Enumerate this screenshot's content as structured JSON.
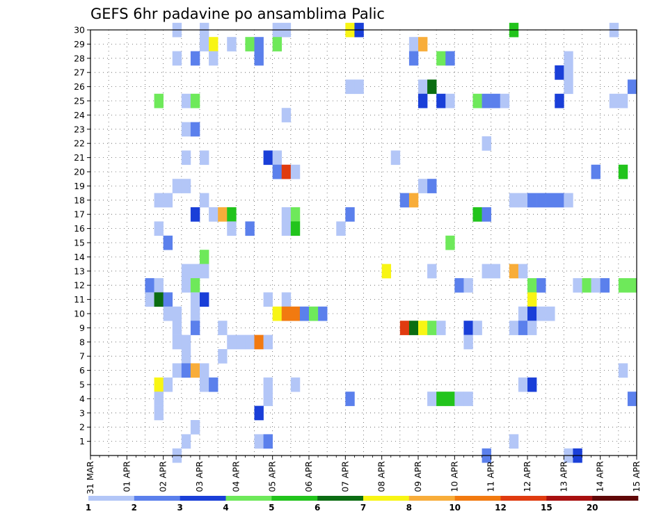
{
  "chart_data": {
    "type": "heatmap",
    "title": "GEFS 6hr padavine po ansamblima Palic",
    "x_ticks": [
      "31 MAR",
      "01 APR",
      "02 APR",
      "03 APR",
      "04 APR",
      "05 APR",
      "06 APR",
      "07 APR",
      "08 APR",
      "09 APR",
      "10 APR",
      "11 APR",
      "12 APR",
      "13 APR",
      "14 APR",
      "15 APR"
    ],
    "y_ticks": [
      "1",
      "2",
      "3",
      "4",
      "5",
      "6",
      "7",
      "8",
      "9",
      "10",
      "11",
      "12",
      "13",
      "14",
      "15",
      "16",
      "17",
      "18",
      "19",
      "20",
      "21",
      "22",
      "23",
      "24",
      "25",
      "26",
      "27",
      "28",
      "29",
      "30"
    ],
    "x_range_days": [
      0,
      15
    ],
    "y_range": [
      0,
      30
    ],
    "grid": true,
    "colorbar": {
      "labels": [
        "1",
        "2",
        "3",
        "4",
        "5",
        "6",
        "7",
        "8",
        "10",
        "12",
        "15",
        "20"
      ],
      "colors": [
        "#b3c6f7",
        "#5b80ec",
        "#1a3fd8",
        "#6ee95a",
        "#22c41c",
        "#0b6d12",
        "#f8f514",
        "#f8ad3a",
        "#f27a10",
        "#e03b10",
        "#a81010",
        "#600808"
      ]
    },
    "cells_note": "each cell: [member (y), day offset from 31 MAR 00Z in 6h steps (x), colour class index into colorbar.colors]",
    "cells": [
      [
        30,
        2.25,
        0
      ],
      [
        30,
        3.0,
        0
      ],
      [
        30,
        5.0,
        0
      ],
      [
        30,
        5.25,
        0
      ],
      [
        30,
        7.0,
        6
      ],
      [
        30,
        7.25,
        2
      ],
      [
        30,
        11.5,
        4
      ],
      [
        30,
        14.25,
        0
      ],
      [
        29,
        3.0,
        0
      ],
      [
        29,
        3.25,
        6
      ],
      [
        29,
        3.75,
        0
      ],
      [
        29,
        4.25,
        3
      ],
      [
        29,
        4.5,
        1
      ],
      [
        29,
        5.0,
        3
      ],
      [
        29,
        8.75,
        0
      ],
      [
        29,
        9.0,
        7
      ],
      [
        28,
        2.25,
        0
      ],
      [
        28,
        2.75,
        1
      ],
      [
        28,
        3.25,
        0
      ],
      [
        28,
        4.5,
        1
      ],
      [
        28,
        8.75,
        1
      ],
      [
        28,
        9.5,
        3
      ],
      [
        28,
        9.75,
        1
      ],
      [
        28,
        13.0,
        0
      ],
      [
        27,
        12.75,
        2
      ],
      [
        27,
        13.0,
        0
      ],
      [
        26,
        7.0,
        0
      ],
      [
        26,
        7.25,
        0
      ],
      [
        26,
        9.0,
        0
      ],
      [
        26,
        9.25,
        5
      ],
      [
        26,
        13.0,
        0
      ],
      [
        26,
        14.75,
        1
      ],
      [
        25,
        1.75,
        3
      ],
      [
        25,
        2.5,
        0
      ],
      [
        25,
        2.75,
        3
      ],
      [
        25,
        9.0,
        2
      ],
      [
        25,
        9.5,
        2
      ],
      [
        25,
        9.75,
        0
      ],
      [
        25,
        10.5,
        3
      ],
      [
        25,
        10.75,
        1
      ],
      [
        25,
        11.0,
        1
      ],
      [
        25,
        11.25,
        0
      ],
      [
        25,
        12.75,
        2
      ],
      [
        25,
        14.25,
        0
      ],
      [
        25,
        14.5,
        0
      ],
      [
        24,
        5.25,
        0
      ],
      [
        23,
        2.5,
        0
      ],
      [
        23,
        2.75,
        1
      ],
      [
        22,
        10.75,
        0
      ],
      [
        21,
        2.5,
        0
      ],
      [
        21,
        3.0,
        0
      ],
      [
        21,
        4.75,
        2
      ],
      [
        21,
        5.0,
        0
      ],
      [
        21,
        8.25,
        0
      ],
      [
        20,
        5.0,
        1
      ],
      [
        20,
        5.25,
        9
      ],
      [
        20,
        5.5,
        0
      ],
      [
        20,
        13.75,
        1
      ],
      [
        20,
        14.5,
        4
      ],
      [
        19,
        2.25,
        0
      ],
      [
        19,
        2.5,
        0
      ],
      [
        19,
        9.0,
        0
      ],
      [
        19,
        9.25,
        1
      ],
      [
        18,
        1.75,
        0
      ],
      [
        18,
        2.0,
        0
      ],
      [
        18,
        3.0,
        0
      ],
      [
        18,
        8.5,
        1
      ],
      [
        18,
        8.75,
        7
      ],
      [
        18,
        11.5,
        0
      ],
      [
        18,
        11.75,
        0
      ],
      [
        18,
        12.0,
        1
      ],
      [
        18,
        12.25,
        1
      ],
      [
        18,
        12.5,
        1
      ],
      [
        18,
        12.75,
        1
      ],
      [
        18,
        13.0,
        0
      ],
      [
        17,
        2.75,
        2
      ],
      [
        17,
        3.25,
        0
      ],
      [
        17,
        3.5,
        7
      ],
      [
        17,
        3.75,
        4
      ],
      [
        17,
        5.25,
        0
      ],
      [
        17,
        5.5,
        3
      ],
      [
        17,
        7.0,
        1
      ],
      [
        17,
        10.5,
        4
      ],
      [
        17,
        10.75,
        1
      ],
      [
        16,
        1.75,
        0
      ],
      [
        16,
        3.75,
        0
      ],
      [
        16,
        4.25,
        1
      ],
      [
        16,
        5.25,
        0
      ],
      [
        16,
        5.5,
        4
      ],
      [
        16,
        6.75,
        0
      ],
      [
        15,
        2.0,
        1
      ],
      [
        15,
        9.75,
        3
      ],
      [
        14,
        3.0,
        3
      ],
      [
        13,
        2.5,
        0
      ],
      [
        13,
        2.75,
        0
      ],
      [
        13,
        3.0,
        0
      ],
      [
        13,
        8.0,
        6
      ],
      [
        13,
        9.25,
        0
      ],
      [
        13,
        10.75,
        0
      ],
      [
        13,
        11.0,
        0
      ],
      [
        13,
        11.5,
        7
      ],
      [
        13,
        11.75,
        0
      ],
      [
        12,
        1.5,
        1
      ],
      [
        12,
        1.75,
        0
      ],
      [
        12,
        2.5,
        0
      ],
      [
        12,
        2.75,
        3
      ],
      [
        12,
        10.0,
        1
      ],
      [
        12,
        10.25,
        0
      ],
      [
        12,
        12.0,
        3
      ],
      [
        12,
        12.25,
        1
      ],
      [
        12,
        13.25,
        0
      ],
      [
        12,
        13.5,
        3
      ],
      [
        12,
        13.75,
        0
      ],
      [
        12,
        14.0,
        1
      ],
      [
        12,
        14.5,
        3
      ],
      [
        12,
        14.75,
        3
      ],
      [
        11,
        1.5,
        0
      ],
      [
        11,
        1.75,
        5
      ],
      [
        11,
        2.0,
        1
      ],
      [
        11,
        2.75,
        0
      ],
      [
        11,
        3.0,
        2
      ],
      [
        11,
        4.75,
        0
      ],
      [
        11,
        5.25,
        0
      ],
      [
        11,
        12.0,
        6
      ],
      [
        10,
        2.0,
        0
      ],
      [
        10,
        2.25,
        0
      ],
      [
        10,
        2.75,
        0
      ],
      [
        10,
        5.0,
        6
      ],
      [
        10,
        5.25,
        8
      ],
      [
        10,
        5.5,
        8
      ],
      [
        10,
        5.75,
        1
      ],
      [
        10,
        6.0,
        3
      ],
      [
        10,
        6.25,
        1
      ],
      [
        10,
        11.75,
        0
      ],
      [
        10,
        12.0,
        2
      ],
      [
        10,
        12.25,
        0
      ],
      [
        10,
        12.5,
        0
      ],
      [
        9,
        2.25,
        0
      ],
      [
        9,
        2.75,
        1
      ],
      [
        9,
        3.5,
        0
      ],
      [
        9,
        8.5,
        9
      ],
      [
        9,
        8.75,
        5
      ],
      [
        9,
        9.0,
        6
      ],
      [
        9,
        9.25,
        3
      ],
      [
        9,
        9.5,
        0
      ],
      [
        9,
        10.25,
        2
      ],
      [
        9,
        10.5,
        0
      ],
      [
        9,
        11.5,
        0
      ],
      [
        9,
        11.75,
        1
      ],
      [
        9,
        12.0,
        0
      ],
      [
        8,
        2.25,
        0
      ],
      [
        8,
        2.5,
        0
      ],
      [
        8,
        3.75,
        0
      ],
      [
        8,
        4.0,
        0
      ],
      [
        8,
        4.25,
        0
      ],
      [
        8,
        4.5,
        8
      ],
      [
        8,
        4.75,
        0
      ],
      [
        8,
        10.25,
        0
      ],
      [
        7,
        2.5,
        0
      ],
      [
        7,
        3.5,
        0
      ],
      [
        6,
        2.25,
        0
      ],
      [
        6,
        2.5,
        1
      ],
      [
        6,
        2.75,
        7
      ],
      [
        6,
        3.0,
        0
      ],
      [
        6,
        14.5,
        0
      ],
      [
        5,
        1.75,
        6
      ],
      [
        5,
        2.0,
        0
      ],
      [
        5,
        3.0,
        0
      ],
      [
        5,
        3.25,
        1
      ],
      [
        5,
        4.75,
        0
      ],
      [
        5,
        5.5,
        0
      ],
      [
        5,
        11.75,
        0
      ],
      [
        5,
        12.0,
        2
      ],
      [
        4,
        1.75,
        0
      ],
      [
        4,
        4.75,
        0
      ],
      [
        4,
        7.0,
        1
      ],
      [
        4,
        9.25,
        0
      ],
      [
        4,
        9.5,
        4
      ],
      [
        4,
        9.75,
        4
      ],
      [
        4,
        10.0,
        0
      ],
      [
        4,
        10.25,
        0
      ],
      [
        4,
        14.75,
        1
      ],
      [
        3,
        1.75,
        0
      ],
      [
        3,
        4.5,
        2
      ],
      [
        2,
        2.75,
        0
      ],
      [
        1,
        2.5,
        0
      ],
      [
        1,
        4.5,
        0
      ],
      [
        1,
        4.75,
        1
      ],
      [
        1,
        11.5,
        0
      ],
      [
        0,
        2.25,
        0
      ],
      [
        0,
        10.75,
        1
      ],
      [
        0,
        13.0,
        0
      ],
      [
        0,
        13.25,
        2
      ]
    ]
  }
}
